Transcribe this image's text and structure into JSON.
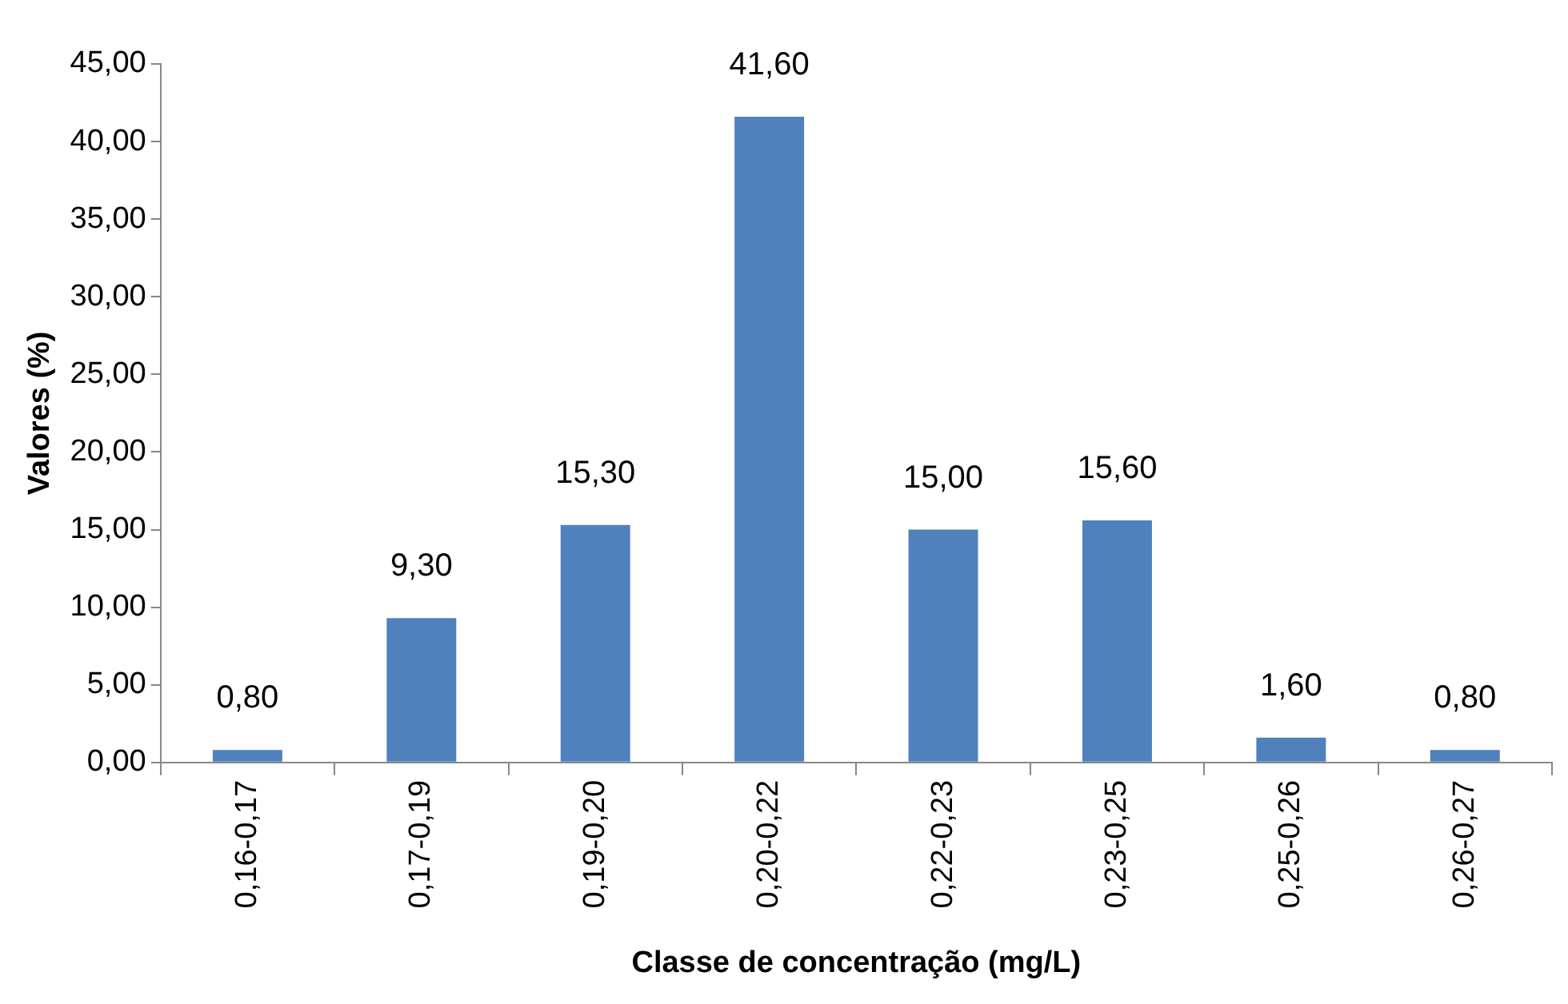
{
  "chart_data": {
    "type": "bar",
    "xlabel": "Classe de concentração (mg/L)",
    "ylabel": "Valores (%)",
    "categories": [
      "0,16-0,17",
      "0,17-0,19",
      "0,19-0,20",
      "0,20-0,22",
      "0,22-0,23",
      "0,23-0,25",
      "0,25-0,26",
      "0,26-0,27"
    ],
    "values": [
      0.8,
      9.3,
      15.3,
      41.6,
      15.0,
      15.6,
      1.6,
      0.8
    ],
    "value_labels": [
      "0,80",
      "9,30",
      "15,30",
      "41,60",
      "15,00",
      "15,60",
      "1,60",
      "0,80"
    ],
    "color": "#4f81bd",
    "ylim": [
      0,
      45
    ],
    "yticks": [
      {
        "value": 0,
        "label": "0,00"
      },
      {
        "value": 5,
        "label": "5,00"
      },
      {
        "value": 10,
        "label": "10,00"
      },
      {
        "value": 15,
        "label": "15,00"
      },
      {
        "value": 20,
        "label": "20,00"
      },
      {
        "value": 25,
        "label": "25,00"
      },
      {
        "value": 30,
        "label": "30,00"
      },
      {
        "value": 35,
        "label": "35,00"
      },
      {
        "value": 40,
        "label": "40,00"
      },
      {
        "value": 45,
        "label": "45,00"
      }
    ]
  }
}
